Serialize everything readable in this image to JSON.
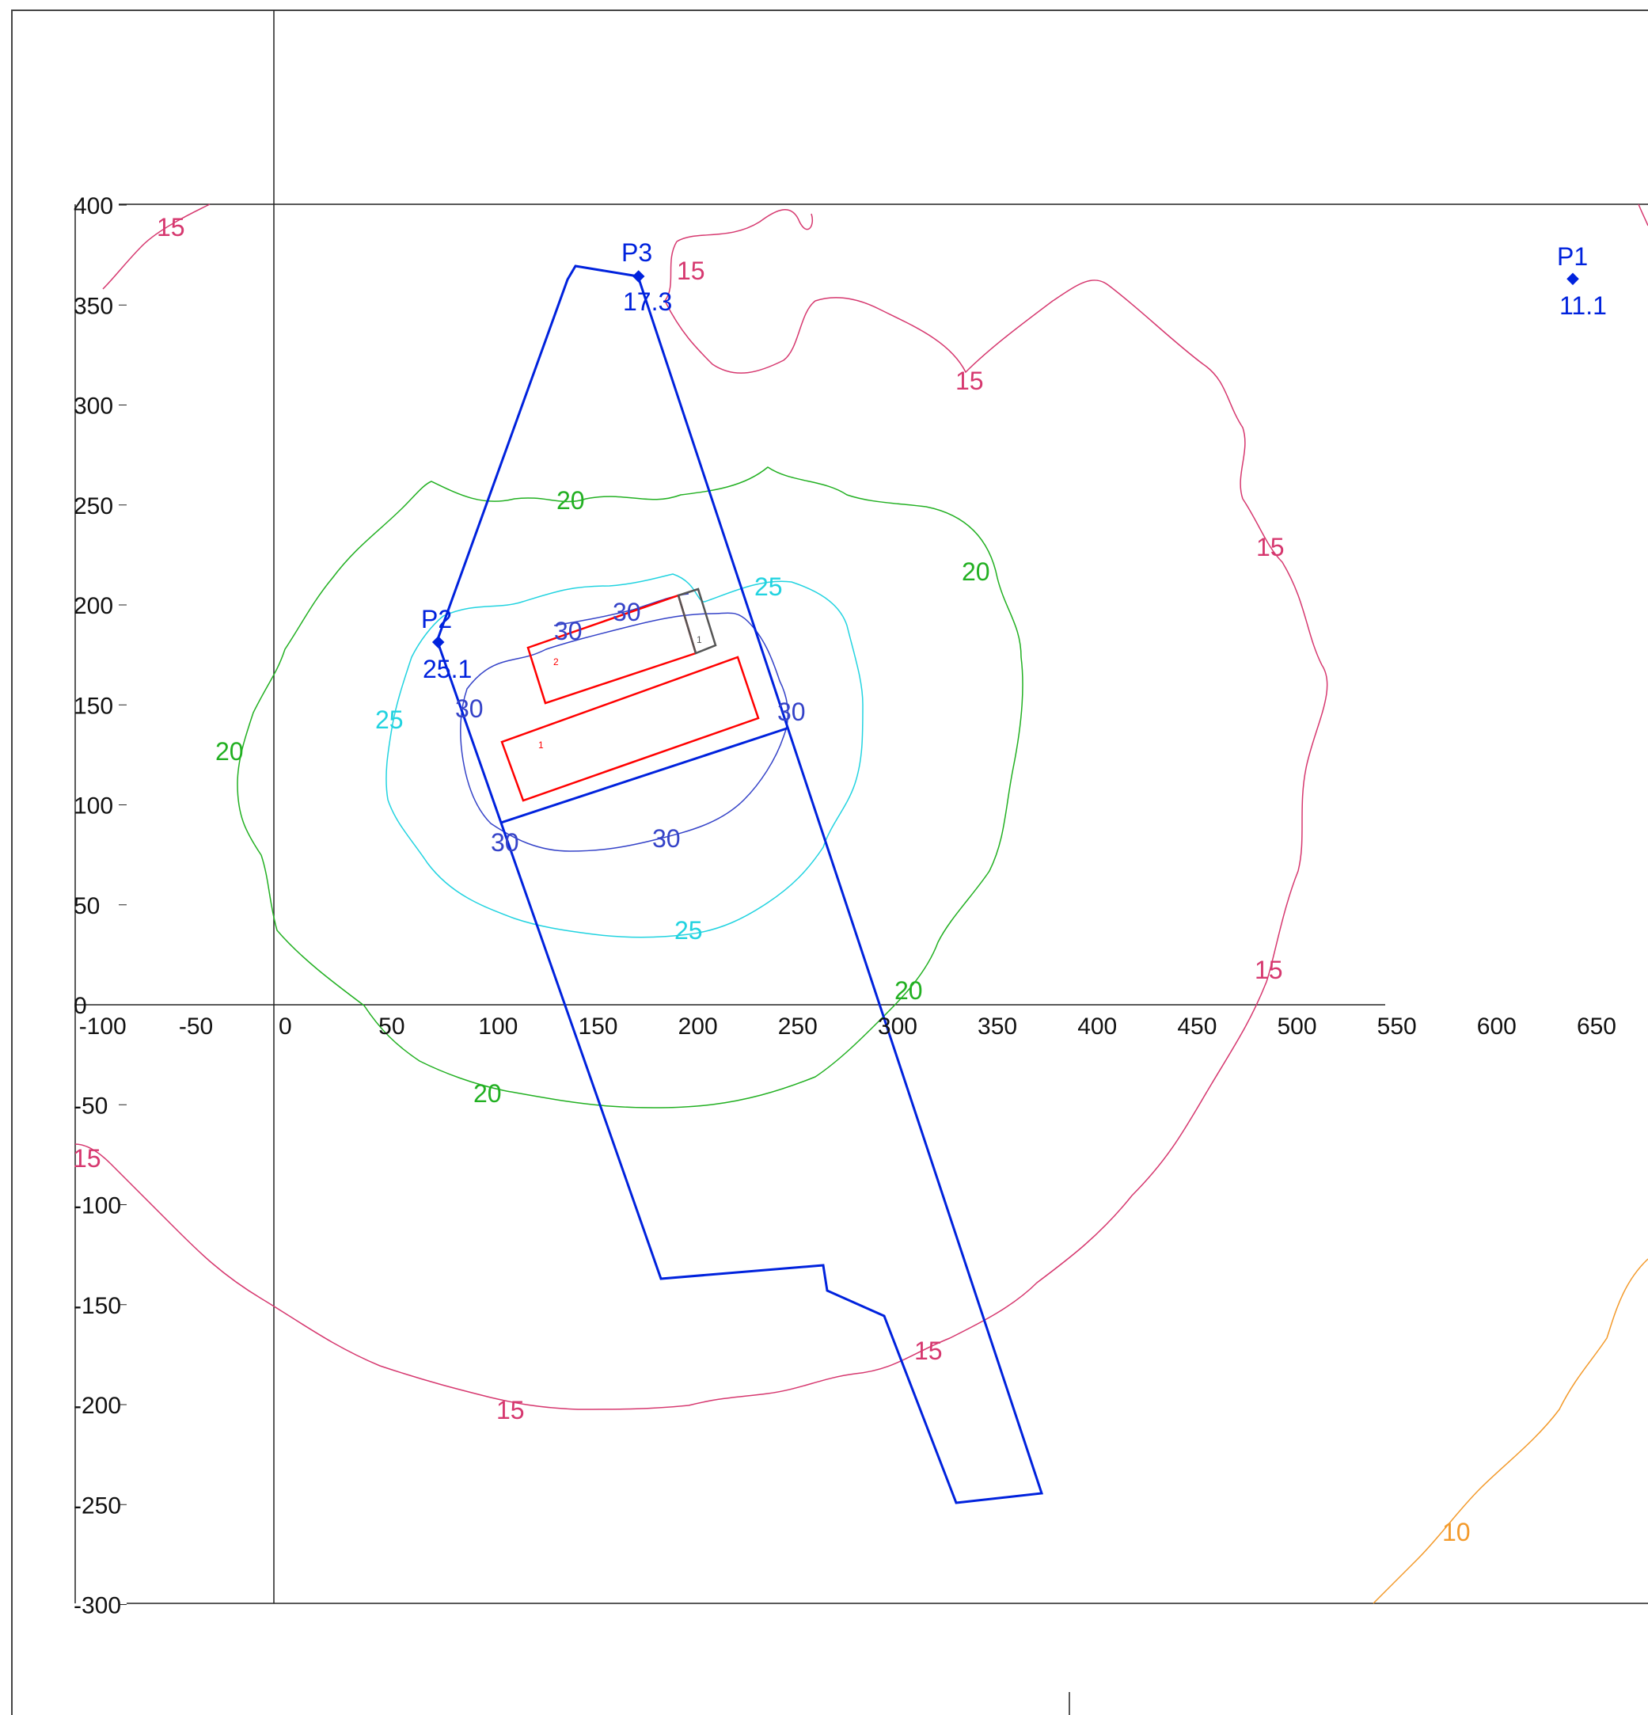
{
  "axes": {
    "x_ticks": [
      "-100",
      "-50",
      "0",
      "50",
      "100",
      "150",
      "200",
      "250",
      "300",
      "350",
      "400",
      "450",
      "500",
      "550",
      "600",
      "650"
    ],
    "y_ticks": [
      "400",
      "350",
      "300",
      "250",
      "200",
      "150",
      "100",
      "50",
      "0",
      "-50",
      "-100",
      "-150",
      "-200",
      "-250",
      "-300"
    ],
    "x_range": [
      -100,
      650
    ],
    "y_range": [
      -300,
      400
    ]
  },
  "points": [
    {
      "name": "P1",
      "value": "11.1",
      "x": 650,
      "y": 362
    },
    {
      "name": "P2",
      "value": "25.1",
      "x": 82,
      "y": 181
    },
    {
      "name": "P3",
      "value": "17.3",
      "x": 182,
      "y": 365
    }
  ],
  "contour_labels": [
    {
      "text": "15",
      "level": 15
    },
    {
      "text": "20",
      "level": 20
    },
    {
      "text": "25",
      "level": 25
    },
    {
      "text": "30",
      "level": 30
    },
    {
      "text": "10",
      "level": 10
    }
  ],
  "contour_colors": {
    "10": "#f39a2b",
    "15": "#d6386f",
    "20": "#22b022",
    "25": "#22d3e0",
    "30": "#3543c8"
  },
  "buildings": [
    {
      "label": "1",
      "color": "#ff0000"
    },
    {
      "label": "2",
      "color": "#ff0000"
    },
    {
      "label": "1",
      "color": "#555555"
    }
  ],
  "boundary_color": "#0022dd"
}
